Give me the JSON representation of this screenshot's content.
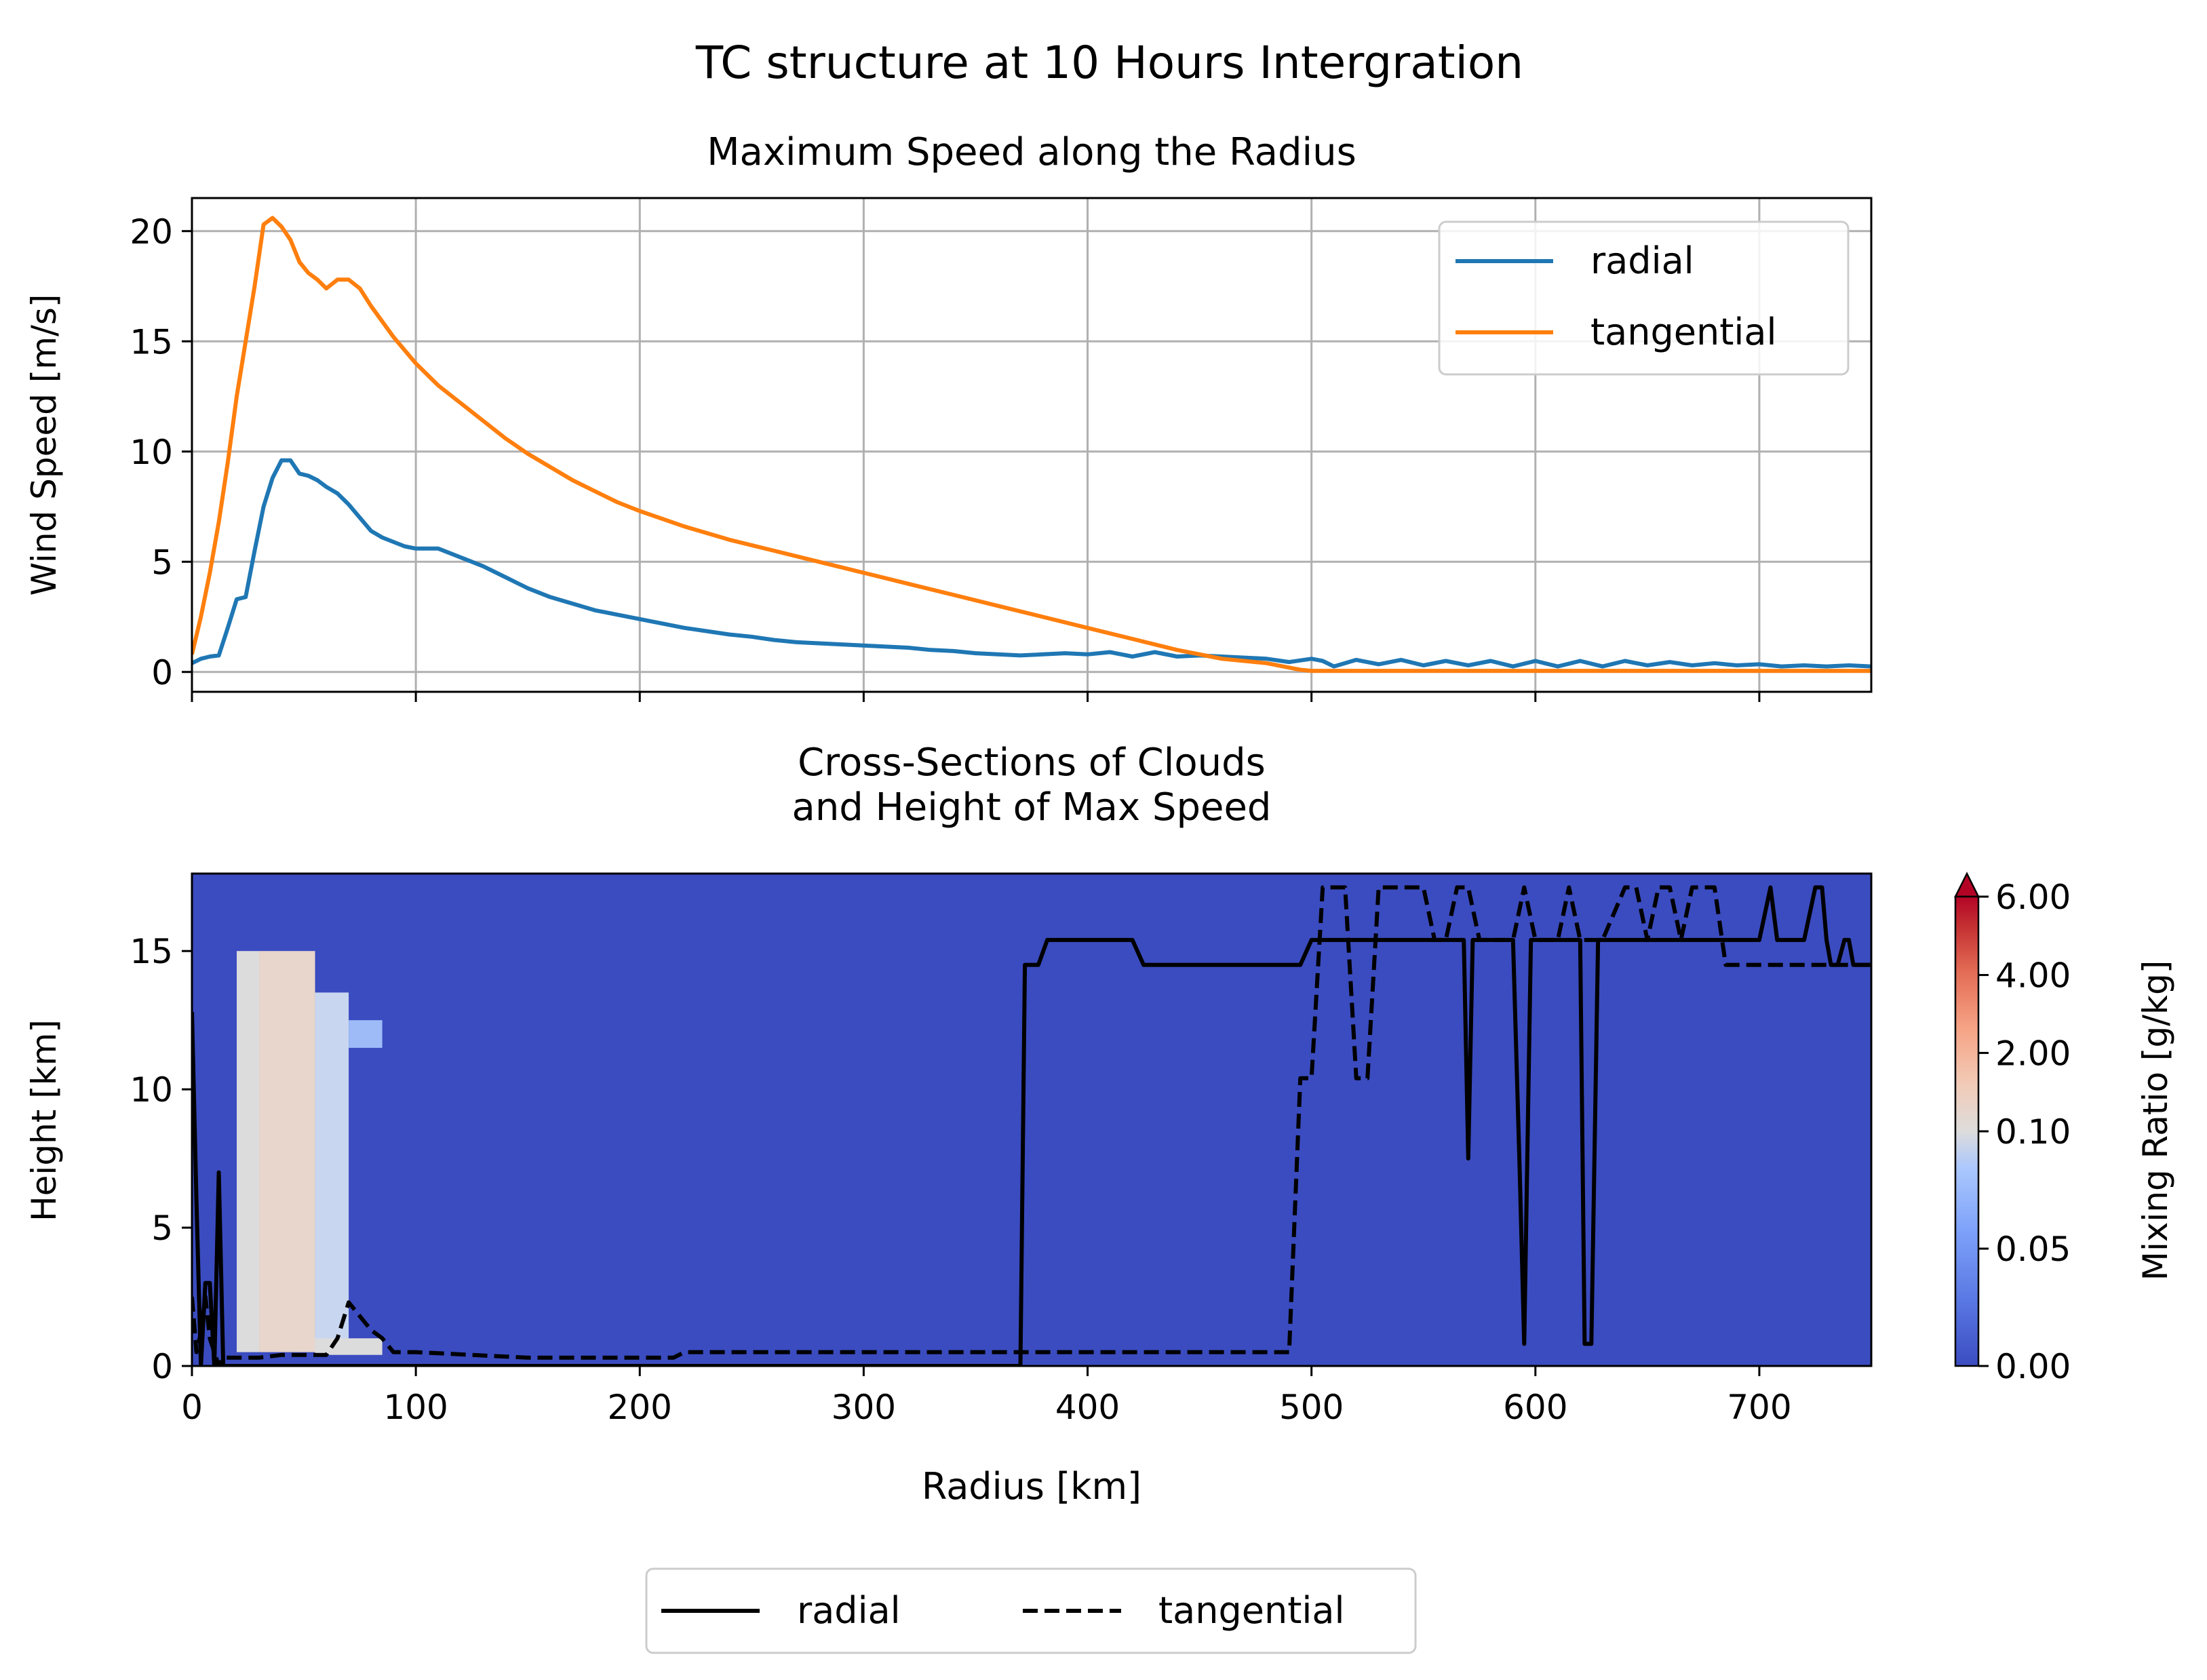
{
  "figure": {
    "suptitle": "TC structure at 10 Hours Intergration"
  },
  "colors": {
    "radial": "#1f77b4",
    "tangential": "#ff7f0e",
    "grid": "#b0b0b0",
    "background_cloud": "#3b4cc0",
    "black": "#000000"
  },
  "chart_data": [
    {
      "type": "line",
      "title": "Maximum Speed along the Radius",
      "xlabel": "",
      "ylabel": "Wind Speed [m/s]",
      "xlim": [
        0,
        750
      ],
      "ylim": [
        -0.9,
        21.5
      ],
      "xticks": [
        0,
        100,
        200,
        300,
        400,
        500,
        600,
        700
      ],
      "xtick_labels_shown": false,
      "yticks": [
        0,
        5,
        10,
        15,
        20
      ],
      "ytick_labels": [
        "0",
        "5",
        "10",
        "15",
        "20"
      ],
      "grid": true,
      "legend": {
        "position": "upper right",
        "entries": [
          "radial",
          "tangential"
        ]
      },
      "series": [
        {
          "name": "radial",
          "x": [
            0,
            4,
            8,
            12,
            16,
            20,
            24,
            28,
            32,
            36,
            40,
            44,
            48,
            52,
            56,
            60,
            65,
            70,
            75,
            80,
            85,
            90,
            95,
            100,
            105,
            110,
            115,
            120,
            130,
            140,
            150,
            160,
            170,
            180,
            190,
            200,
            210,
            220,
            230,
            240,
            250,
            260,
            270,
            280,
            290,
            300,
            310,
            320,
            330,
            340,
            350,
            360,
            370,
            380,
            390,
            400,
            410,
            420,
            430,
            440,
            450,
            460,
            470,
            480,
            490,
            500,
            505,
            510,
            520,
            530,
            540,
            550,
            560,
            570,
            580,
            590,
            600,
            610,
            620,
            630,
            640,
            650,
            660,
            670,
            680,
            690,
            700,
            710,
            720,
            730,
            740,
            750
          ],
          "y": [
            0.4,
            0.6,
            0.7,
            0.75,
            2.0,
            3.3,
            3.4,
            5.5,
            7.5,
            8.8,
            9.6,
            9.6,
            9.0,
            8.9,
            8.7,
            8.4,
            8.1,
            7.6,
            7.0,
            6.4,
            6.1,
            5.9,
            5.7,
            5.6,
            5.6,
            5.6,
            5.4,
            5.2,
            4.8,
            4.3,
            3.8,
            3.4,
            3.1,
            2.8,
            2.6,
            2.4,
            2.2,
            2.0,
            1.85,
            1.7,
            1.6,
            1.45,
            1.35,
            1.3,
            1.25,
            1.2,
            1.15,
            1.1,
            1.0,
            0.95,
            0.85,
            0.8,
            0.75,
            0.8,
            0.85,
            0.8,
            0.9,
            0.7,
            0.9,
            0.7,
            0.75,
            0.7,
            0.65,
            0.6,
            0.45,
            0.6,
            0.5,
            0.25,
            0.55,
            0.35,
            0.55,
            0.3,
            0.5,
            0.3,
            0.5,
            0.25,
            0.5,
            0.25,
            0.5,
            0.25,
            0.5,
            0.3,
            0.45,
            0.3,
            0.4,
            0.3,
            0.35,
            0.25,
            0.3,
            0.25,
            0.3,
            0.25
          ]
        },
        {
          "name": "tangential",
          "x": [
            0,
            4,
            8,
            12,
            16,
            20,
            24,
            28,
            32,
            36,
            40,
            44,
            48,
            52,
            56,
            60,
            65,
            70,
            75,
            80,
            85,
            90,
            95,
            100,
            110,
            120,
            130,
            140,
            150,
            160,
            170,
            180,
            190,
            200,
            220,
            240,
            260,
            280,
            300,
            320,
            340,
            360,
            380,
            400,
            420,
            440,
            460,
            480,
            490,
            495,
            500,
            520,
            540,
            560,
            600,
            650,
            700,
            750
          ],
          "y": [
            0.8,
            2.5,
            4.5,
            6.8,
            9.5,
            12.5,
            15.0,
            17.5,
            20.3,
            20.6,
            20.2,
            19.6,
            18.6,
            18.1,
            17.8,
            17.4,
            17.8,
            17.8,
            17.4,
            16.6,
            15.9,
            15.2,
            14.6,
            14.0,
            13.0,
            12.2,
            11.4,
            10.6,
            9.9,
            9.3,
            8.7,
            8.2,
            7.7,
            7.3,
            6.6,
            6.0,
            5.5,
            5.0,
            4.5,
            4.0,
            3.5,
            3.0,
            2.5,
            2.0,
            1.5,
            1.0,
            0.6,
            0.4,
            0.2,
            0.1,
            0.05,
            0.05,
            0.05,
            0.05,
            0.05,
            0.05,
            0.05,
            0.05
          ]
        }
      ]
    },
    {
      "type": "heatmap",
      "title": "Cross-Sections of Clouds\nand Height of Max Speed",
      "xlabel": "Radius [km]",
      "ylabel": "Height [km]",
      "xlim": [
        0,
        750
      ],
      "ylim": [
        0,
        17.8
      ],
      "xticks": [
        0,
        100,
        200,
        300,
        400,
        500,
        600,
        700
      ],
      "xtick_labels": [
        "0",
        "100",
        "200",
        "300",
        "400",
        "500",
        "600",
        "700"
      ],
      "yticks": [
        0,
        5,
        10,
        15
      ],
      "ytick_labels": [
        "0",
        "5",
        "10",
        "15"
      ],
      "colorbar": {
        "label": "Mixing Ratio [g/kg]",
        "ticks": [
          "0.00",
          "0.05",
          "0.10",
          "2.00",
          "4.00",
          "6.00"
        ],
        "extend": "max"
      },
      "cloud_region": {
        "note": "cloud water mixing ratio > 0 shown between ~20-85 km radius, ~0-15 km height",
        "columns": [
          {
            "r": [
              20,
              30
            ],
            "z": [
              0.5,
              15.0
            ],
            "value": 0.1
          },
          {
            "r": [
              30,
              55
            ],
            "z": [
              0.5,
              15.0
            ],
            "value": 1.0
          },
          {
            "r": [
              55,
              70
            ],
            "z": [
              0.5,
              13.5
            ],
            "value": 0.08
          },
          {
            "r": [
              70,
              85
            ],
            "z": [
              11.5,
              12.5
            ],
            "value": 0.05
          },
          {
            "r": [
              55,
              85
            ],
            "z": [
              0.4,
              1.0
            ],
            "value": 0.1
          }
        ]
      },
      "legend": {
        "position": "lower center",
        "entries": [
          "radial",
          "tangential"
        ]
      },
      "series": [
        {
          "name": "radial",
          "style": "solid",
          "x": [
            0,
            2,
            4,
            6,
            8,
            10,
            12,
            14,
            16,
            18,
            20,
            30,
            40,
            50,
            60,
            70,
            80,
            90,
            100,
            200,
            300,
            370,
            372,
            375,
            378,
            382,
            385,
            390,
            400,
            420,
            425,
            430,
            440,
            460,
            480,
            490,
            495,
            500,
            505,
            510,
            520,
            530,
            540,
            550,
            560,
            565,
            568,
            570,
            572,
            575,
            580,
            590,
            593,
            595,
            598,
            600,
            605,
            610,
            615,
            620,
            622,
            625,
            628,
            630,
            640,
            650,
            660,
            670,
            680,
            690,
            700,
            705,
            708,
            710,
            712,
            715,
            720,
            725,
            728,
            730,
            732,
            735,
            738,
            740,
            742,
            745,
            750
          ],
          "y": [
            12.8,
            6.0,
            0.0,
            3.0,
            3.0,
            0.0,
            7.0,
            0.0,
            0.0,
            0.0,
            0.0,
            0.0,
            0.0,
            0.0,
            0.0,
            0.0,
            0.0,
            0.0,
            0.0,
            0.0,
            0.0,
            0.0,
            14.5,
            14.5,
            14.5,
            15.4,
            15.4,
            15.4,
            15.4,
            15.4,
            14.5,
            14.5,
            14.5,
            14.5,
            14.5,
            14.5,
            14.5,
            15.4,
            15.4,
            15.4,
            15.4,
            15.4,
            15.4,
            15.4,
            15.4,
            15.4,
            15.4,
            7.5,
            15.4,
            15.4,
            15.4,
            15.4,
            7.0,
            0.8,
            15.4,
            15.4,
            15.4,
            15.4,
            15.4,
            15.4,
            0.8,
            0.8,
            15.4,
            15.4,
            15.4,
            15.4,
            15.4,
            15.4,
            15.4,
            15.4,
            15.4,
            17.3,
            15.4,
            15.4,
            15.4,
            15.4,
            15.4,
            17.3,
            17.3,
            15.4,
            14.5,
            14.5,
            15.4,
            15.4,
            14.5,
            14.5,
            14.5
          ]
        },
        {
          "name": "tangential",
          "style": "dashed",
          "x": [
            0,
            2,
            4,
            6,
            8,
            10,
            12,
            14,
            16,
            18,
            20,
            30,
            40,
            50,
            60,
            65,
            70,
            75,
            80,
            85,
            90,
            100,
            150,
            200,
            215,
            220,
            300,
            400,
            490,
            495,
            500,
            505,
            510,
            515,
            520,
            523,
            525,
            530,
            535,
            540,
            545,
            550,
            555,
            560,
            565,
            570,
            575,
            580,
            590,
            595,
            600,
            610,
            615,
            620,
            630,
            640,
            645,
            650,
            655,
            660,
            665,
            670,
            675,
            680,
            685,
            690,
            700,
            710,
            720,
            730,
            740,
            750
          ],
          "y": [
            2.5,
            0.5,
            1.2,
            2.5,
            1.0,
            0.5,
            0.0,
            0.3,
            0.3,
            0.3,
            0.3,
            0.3,
            0.4,
            0.4,
            0.4,
            1.0,
            2.3,
            1.8,
            1.3,
            1.0,
            0.5,
            0.5,
            0.3,
            0.3,
            0.3,
            0.5,
            0.5,
            0.5,
            0.5,
            10.4,
            10.4,
            17.3,
            17.3,
            17.3,
            10.4,
            10.4,
            10.4,
            17.3,
            17.3,
            17.3,
            17.3,
            17.3,
            15.4,
            15.4,
            17.3,
            17.3,
            15.4,
            15.4,
            15.4,
            17.3,
            15.4,
            15.4,
            17.3,
            15.4,
            15.4,
            17.3,
            17.3,
            15.4,
            17.3,
            17.3,
            15.4,
            17.3,
            17.3,
            17.3,
            14.5,
            14.5,
            14.5,
            14.5,
            14.5,
            14.5,
            14.5,
            14.5
          ]
        }
      ]
    }
  ]
}
